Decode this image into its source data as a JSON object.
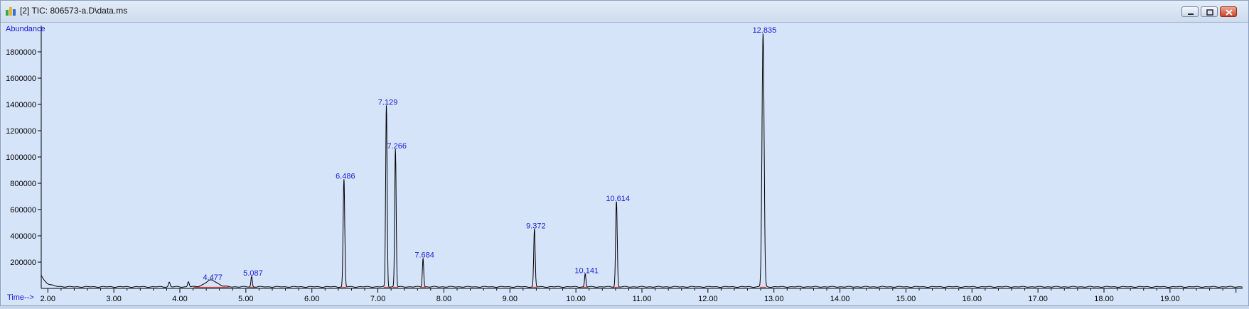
{
  "window": {
    "title": "[2] TIC: 806573-a.D\\data.ms",
    "controls": [
      "minimize-icon",
      "restore-icon",
      "close-icon"
    ]
  },
  "colors": {
    "background": "#d6e4fa",
    "trace": "#000000",
    "baseline": "#e02020",
    "label": "#1a1ad8"
  },
  "chart_data": {
    "type": "line",
    "ylabel": "Abundance",
    "xlabel": "Time-->",
    "xlim": [
      1.9,
      20.1
    ],
    "ylim": [
      0,
      2000000
    ],
    "x_ticks": [
      "2.00",
      "3.00",
      "4.00",
      "5.00",
      "6.00",
      "7.00",
      "8.00",
      "9.00",
      "10.00",
      "11.00",
      "12.00",
      "13.00",
      "14.00",
      "15.00",
      "16.00",
      "17.00",
      "18.00",
      "19.00"
    ],
    "y_ticks": [
      "200000",
      "400000",
      "600000",
      "800000",
      "1000000",
      "1200000",
      "1400000",
      "1600000",
      "1800000"
    ],
    "peaks": [
      {
        "rt": 3.84,
        "height": 35000,
        "width": 0.012,
        "label": ""
      },
      {
        "rt": 4.13,
        "height": 40000,
        "width": 0.012,
        "label": ""
      },
      {
        "rt": 4.477,
        "height": 50000,
        "width": 0.09,
        "label": "4.477"
      },
      {
        "rt": 5.087,
        "height": 80000,
        "width": 0.01,
        "label": "5.087"
      },
      {
        "rt": 6.486,
        "height": 820000,
        "width": 0.012,
        "label": "6.486"
      },
      {
        "rt": 7.129,
        "height": 1380000,
        "width": 0.011,
        "label": "7.129"
      },
      {
        "rt": 7.266,
        "height": 1050000,
        "width": 0.011,
        "label": "7.266"
      },
      {
        "rt": 7.684,
        "height": 220000,
        "width": 0.01,
        "label": "7.684"
      },
      {
        "rt": 9.372,
        "height": 440000,
        "width": 0.011,
        "label": "9.372"
      },
      {
        "rt": 10.141,
        "height": 100000,
        "width": 0.01,
        "label": "10.141"
      },
      {
        "rt": 10.614,
        "height": 650000,
        "width": 0.012,
        "label": "10.614"
      },
      {
        "rt": 12.835,
        "height": 1930000,
        "width": 0.016,
        "label": "12.835"
      }
    ]
  }
}
